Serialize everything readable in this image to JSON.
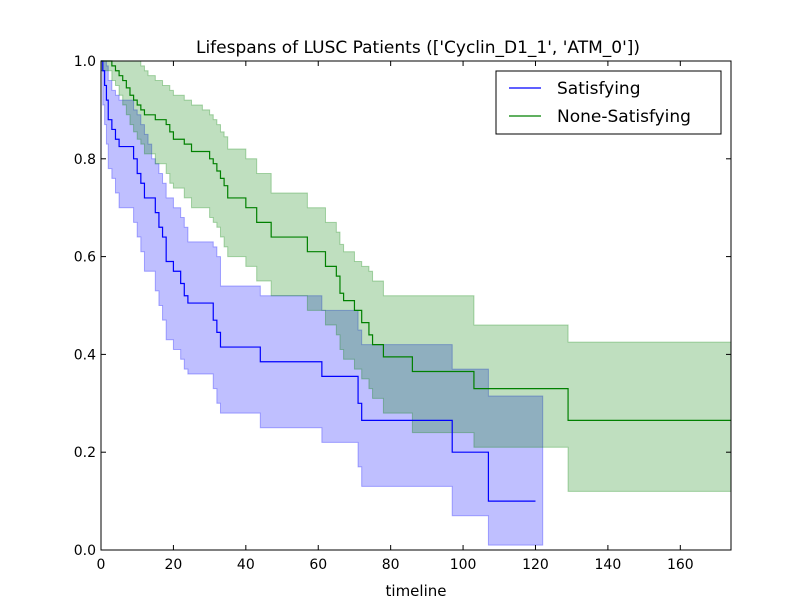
{
  "chart_data": {
    "type": "line",
    "title": "Lifespans of LUSC Patients (['Cyclin_D1_1', 'ATM_0'])",
    "xlabel": "timeline",
    "ylabel": "",
    "xlim": [
      0,
      174
    ],
    "ylim": [
      0.0,
      1.0
    ],
    "xticks": [
      "0",
      "20",
      "40",
      "60",
      "80",
      "100",
      "120",
      "140",
      "160"
    ],
    "xtick_values": [
      0,
      20,
      40,
      60,
      80,
      100,
      120,
      140,
      160
    ],
    "yticks": [
      "0.0",
      "0.2",
      "0.4",
      "0.6",
      "0.8",
      "1.0"
    ],
    "ytick_values": [
      0.0,
      0.2,
      0.4,
      0.6,
      0.8,
      1.0
    ],
    "grid": false,
    "legend_position": "top-right",
    "series": [
      {
        "name": "Satisfying",
        "color": "#0000ff",
        "band_color": "#0000ff",
        "band_opacity": 0.25,
        "steps": [
          [
            0,
            1.0
          ],
          [
            0.5,
            0.98
          ],
          [
            1,
            0.95
          ],
          [
            1.5,
            0.92
          ],
          [
            2,
            0.88
          ],
          [
            3,
            0.86
          ],
          [
            4,
            0.84
          ],
          [
            5,
            0.825
          ],
          [
            9,
            0.8
          ],
          [
            10,
            0.77
          ],
          [
            11,
            0.75
          ],
          [
            12,
            0.72
          ],
          [
            15,
            0.69
          ],
          [
            16,
            0.66
          ],
          [
            17,
            0.64
          ],
          [
            18,
            0.59
          ],
          [
            20,
            0.57
          ],
          [
            22,
            0.545
          ],
          [
            23,
            0.52
          ],
          [
            24,
            0.505
          ],
          [
            31,
            0.47
          ],
          [
            32,
            0.445
          ],
          [
            33,
            0.415
          ],
          [
            44,
            0.385
          ],
          [
            61,
            0.355
          ],
          [
            71,
            0.3
          ],
          [
            72,
            0.265
          ],
          [
            97,
            0.2
          ],
          [
            107,
            0.1
          ],
          [
            120,
            0.1
          ]
        ],
        "ci_upper": [
          [
            0,
            1.0
          ],
          [
            0.5,
            1.0
          ],
          [
            1,
            1.0
          ],
          [
            1.5,
            0.99
          ],
          [
            2,
            0.96
          ],
          [
            3,
            0.94
          ],
          [
            4,
            0.93
          ],
          [
            5,
            0.92
          ],
          [
            9,
            0.9
          ],
          [
            10,
            0.89
          ],
          [
            11,
            0.87
          ],
          [
            12,
            0.85
          ],
          [
            13,
            0.83
          ],
          [
            14,
            0.8
          ],
          [
            15,
            0.79
          ],
          [
            16,
            0.77
          ],
          [
            17,
            0.75
          ],
          [
            18,
            0.72
          ],
          [
            20,
            0.7
          ],
          [
            22,
            0.68
          ],
          [
            23,
            0.66
          ],
          [
            24,
            0.63
          ],
          [
            31,
            0.62
          ],
          [
            32,
            0.6
          ],
          [
            33,
            0.54
          ],
          [
            44,
            0.52
          ],
          [
            61,
            0.49
          ],
          [
            67,
            0.49
          ],
          [
            71,
            0.45
          ],
          [
            72,
            0.42
          ],
          [
            97,
            0.37
          ],
          [
            107,
            0.315
          ],
          [
            122,
            0.315
          ]
        ],
        "ci_lower": [
          [
            0,
            0.98
          ],
          [
            0.5,
            0.91
          ],
          [
            1,
            0.87
          ],
          [
            1.5,
            0.83
          ],
          [
            2,
            0.78
          ],
          [
            3,
            0.76
          ],
          [
            4,
            0.73
          ],
          [
            5,
            0.7
          ],
          [
            9,
            0.67
          ],
          [
            10,
            0.64
          ],
          [
            11,
            0.61
          ],
          [
            12,
            0.57
          ],
          [
            15,
            0.53
          ],
          [
            16,
            0.5
          ],
          [
            17,
            0.47
          ],
          [
            18,
            0.43
          ],
          [
            20,
            0.41
          ],
          [
            22,
            0.39
          ],
          [
            23,
            0.37
          ],
          [
            24,
            0.36
          ],
          [
            31,
            0.33
          ],
          [
            32,
            0.3
          ],
          [
            33,
            0.28
          ],
          [
            44,
            0.25
          ],
          [
            61,
            0.22
          ],
          [
            71,
            0.17
          ],
          [
            72,
            0.13
          ],
          [
            97,
            0.07
          ],
          [
            107,
            0.01
          ],
          [
            122,
            0.01
          ]
        ]
      },
      {
        "name": "None-Satisfying",
        "color": "#008000",
        "band_color": "#008000",
        "band_opacity": 0.25,
        "steps": [
          [
            0,
            1.0
          ],
          [
            3,
            0.99
          ],
          [
            4,
            0.98
          ],
          [
            5,
            0.97
          ],
          [
            6,
            0.96
          ],
          [
            7,
            0.945
          ],
          [
            8,
            0.93
          ],
          [
            9,
            0.92
          ],
          [
            10,
            0.91
          ],
          [
            11,
            0.9
          ],
          [
            12,
            0.89
          ],
          [
            15,
            0.88
          ],
          [
            18,
            0.87
          ],
          [
            19,
            0.855
          ],
          [
            20,
            0.84
          ],
          [
            23,
            0.83
          ],
          [
            25,
            0.815
          ],
          [
            30,
            0.8
          ],
          [
            31,
            0.79
          ],
          [
            32,
            0.775
          ],
          [
            33,
            0.76
          ],
          [
            34,
            0.745
          ],
          [
            35,
            0.72
          ],
          [
            40,
            0.7
          ],
          [
            43,
            0.67
          ],
          [
            47,
            0.64
          ],
          [
            57,
            0.61
          ],
          [
            62,
            0.58
          ],
          [
            65,
            0.56
          ],
          [
            66,
            0.525
          ],
          [
            67,
            0.51
          ],
          [
            70,
            0.49
          ],
          [
            72,
            0.465
          ],
          [
            74,
            0.44
          ],
          [
            75,
            0.42
          ],
          [
            78,
            0.395
          ],
          [
            86,
            0.365
          ],
          [
            103,
            0.33
          ],
          [
            129,
            0.265
          ],
          [
            174,
            0.265
          ]
        ],
        "ci_upper": [
          [
            0,
            1.0
          ],
          [
            10,
            1.0
          ],
          [
            11,
            0.99
          ],
          [
            12,
            0.98
          ],
          [
            13,
            0.97
          ],
          [
            15,
            0.96
          ],
          [
            17,
            0.95
          ],
          [
            19,
            0.94
          ],
          [
            20,
            0.93
          ],
          [
            23,
            0.92
          ],
          [
            25,
            0.91
          ],
          [
            28,
            0.9
          ],
          [
            30,
            0.89
          ],
          [
            31,
            0.88
          ],
          [
            32,
            0.87
          ],
          [
            33,
            0.855
          ],
          [
            34,
            0.845
          ],
          [
            35,
            0.82
          ],
          [
            40,
            0.8
          ],
          [
            43,
            0.77
          ],
          [
            47,
            0.73
          ],
          [
            57,
            0.7
          ],
          [
            62,
            0.67
          ],
          [
            65,
            0.65
          ],
          [
            66,
            0.625
          ],
          [
            67,
            0.61
          ],
          [
            70,
            0.59
          ],
          [
            72,
            0.58
          ],
          [
            74,
            0.57
          ],
          [
            75,
            0.55
          ],
          [
            78,
            0.52
          ],
          [
            86,
            0.52
          ],
          [
            103,
            0.46
          ],
          [
            129,
            0.425
          ],
          [
            174,
            0.425
          ]
        ],
        "ci_lower": [
          [
            0,
            0.98
          ],
          [
            3,
            0.96
          ],
          [
            4,
            0.95
          ],
          [
            5,
            0.93
          ],
          [
            6,
            0.91
          ],
          [
            7,
            0.89
          ],
          [
            8,
            0.87
          ],
          [
            9,
            0.855
          ],
          [
            10,
            0.84
          ],
          [
            11,
            0.83
          ],
          [
            12,
            0.81
          ],
          [
            15,
            0.79
          ],
          [
            18,
            0.77
          ],
          [
            19,
            0.75
          ],
          [
            20,
            0.74
          ],
          [
            23,
            0.72
          ],
          [
            25,
            0.7
          ],
          [
            30,
            0.68
          ],
          [
            31,
            0.67
          ],
          [
            32,
            0.66
          ],
          [
            33,
            0.64
          ],
          [
            34,
            0.62
          ],
          [
            35,
            0.6
          ],
          [
            40,
            0.58
          ],
          [
            43,
            0.55
          ],
          [
            47,
            0.52
          ],
          [
            57,
            0.49
          ],
          [
            62,
            0.46
          ],
          [
            65,
            0.44
          ],
          [
            66,
            0.41
          ],
          [
            67,
            0.39
          ],
          [
            70,
            0.37
          ],
          [
            72,
            0.35
          ],
          [
            74,
            0.33
          ],
          [
            75,
            0.31
          ],
          [
            78,
            0.28
          ],
          [
            86,
            0.24
          ],
          [
            103,
            0.21
          ],
          [
            129,
            0.12
          ],
          [
            174,
            0.12
          ]
        ]
      }
    ]
  }
}
